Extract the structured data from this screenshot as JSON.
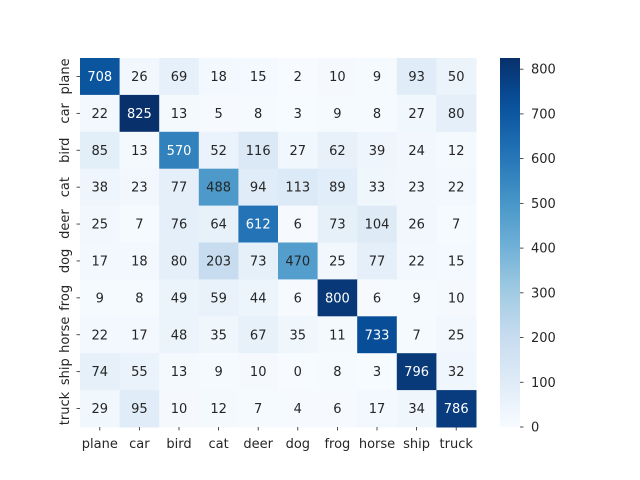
{
  "chart_data": {
    "type": "heatmap",
    "title": "",
    "xlabel": "",
    "ylabel": "",
    "x_categories": [
      "plane",
      "car",
      "bird",
      "cat",
      "deer",
      "dog",
      "frog",
      "horse",
      "ship",
      "truck"
    ],
    "y_categories": [
      "plane",
      "car",
      "bird",
      "cat",
      "deer",
      "dog",
      "frog",
      "horse",
      "ship",
      "truck"
    ],
    "values": [
      [
        708,
        26,
        69,
        18,
        15,
        2,
        10,
        9,
        93,
        50
      ],
      [
        22,
        825,
        13,
        5,
        8,
        3,
        9,
        8,
        27,
        80
      ],
      [
        85,
        13,
        570,
        52,
        116,
        27,
        62,
        39,
        24,
        12
      ],
      [
        38,
        23,
        77,
        488,
        94,
        113,
        89,
        33,
        23,
        22
      ],
      [
        25,
        7,
        76,
        64,
        612,
        6,
        73,
        104,
        26,
        7
      ],
      [
        17,
        18,
        80,
        203,
        73,
        470,
        25,
        77,
        22,
        15
      ],
      [
        9,
        8,
        49,
        59,
        44,
        6,
        800,
        6,
        9,
        10
      ],
      [
        22,
        17,
        48,
        35,
        67,
        35,
        11,
        733,
        7,
        25
      ],
      [
        74,
        55,
        13,
        9,
        10,
        0,
        8,
        3,
        796,
        32
      ],
      [
        29,
        95,
        10,
        12,
        7,
        4,
        6,
        17,
        34,
        786
      ]
    ],
    "colormap": "Blues",
    "colorbar": {
      "range": [
        0,
        825
      ],
      "ticks": [
        0,
        100,
        200,
        300,
        400,
        500,
        600,
        700,
        800
      ]
    },
    "annotated": true
  }
}
